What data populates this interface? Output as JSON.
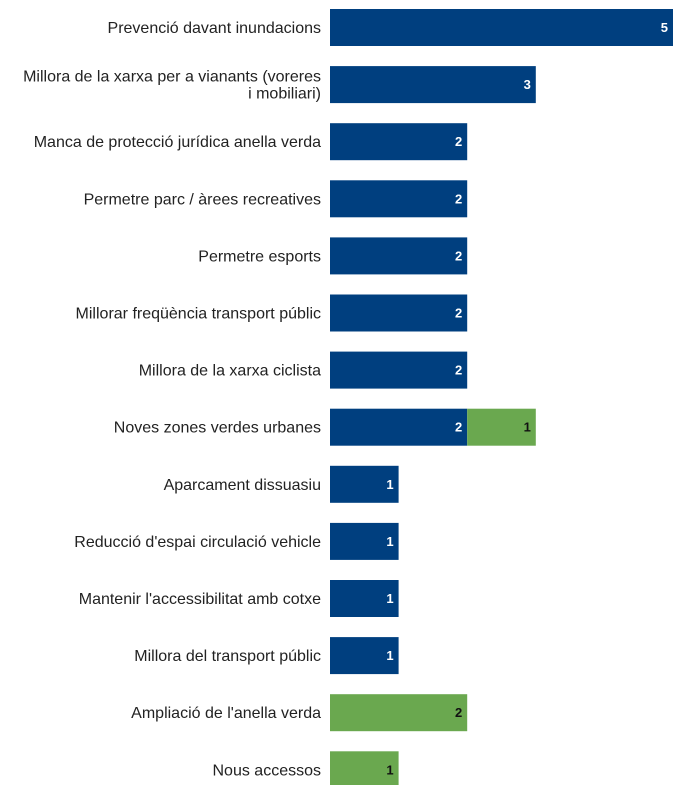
{
  "chart_data": {
    "type": "bar",
    "orientation": "horizontal",
    "stacked": true,
    "legend": "none",
    "grid": false,
    "xlim": [
      0,
      5
    ],
    "categories": [
      [
        "Prevenció davant inundacions"
      ],
      [
        "Millora de la xarxa per a vianants (voreres",
        "i mobiliari)"
      ],
      [
        "Manca de protecció jurídica anella verda"
      ],
      [
        "Permetre parc / àrees recreatives"
      ],
      [
        "Permetre esports"
      ],
      [
        "Millorar freqüència transport públic"
      ],
      [
        "Millora de la xarxa ciclista"
      ],
      [
        "Noves zones verdes urbanes"
      ],
      [
        "Aparcament dissuasiu"
      ],
      [
        "Reducció d'espai circulació vehicle"
      ],
      [
        "Mantenir l'accessibilitat amb cotxe"
      ],
      [
        "Millora del transport públic"
      ],
      [
        "Ampliació de l'anella verda"
      ],
      [
        "Nous accessos"
      ]
    ],
    "series": [
      {
        "color": "#003f7f",
        "label_color": "#ffffff",
        "values": [
          5,
          3,
          2,
          2,
          2,
          2,
          2,
          2,
          1,
          1,
          1,
          1,
          0,
          0
        ]
      },
      {
        "color": "#6aa84f",
        "label_color": "#111111",
        "values": [
          0,
          0,
          0,
          0,
          0,
          0,
          0,
          1,
          0,
          0,
          0,
          0,
          2,
          1
        ]
      }
    ]
  }
}
